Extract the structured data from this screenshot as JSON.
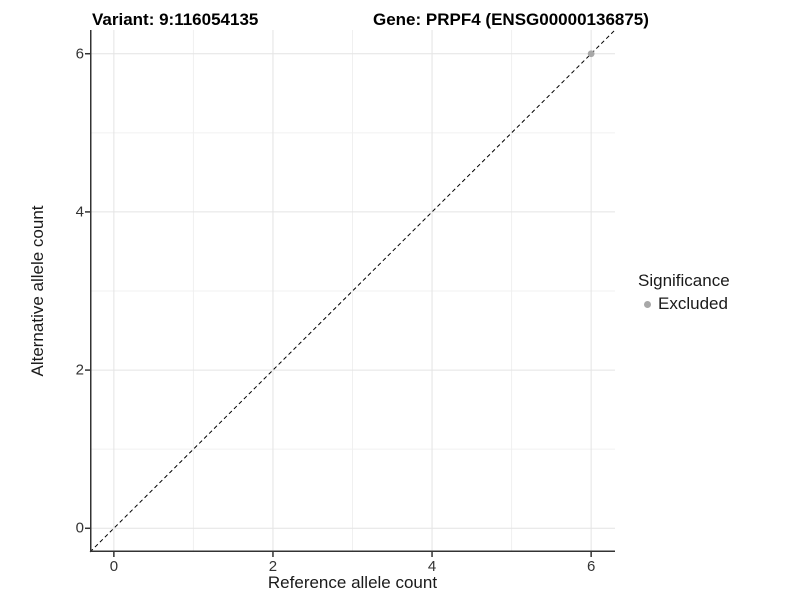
{
  "titles": {
    "variant": "Variant: 9:116054135",
    "gene": "Gene: PRPF4 (ENSG00000136875)"
  },
  "axes": {
    "x_label": "Reference allele count",
    "y_label": "Alternative allele count"
  },
  "legend": {
    "title": "Significance",
    "entries": [
      {
        "label": "Excluded",
        "color": "#a8a8a8"
      }
    ]
  },
  "colors": {
    "background": "#ffffff",
    "axis_line": "#333333",
    "tick_text": "#333333",
    "grid_major": "#e4e4e4",
    "grid_minor": "#f0f0f0",
    "reference_line": "#000000",
    "point": "#a8a8a8"
  },
  "chart_data": {
    "type": "scatter",
    "title": "Variant: 9:116054135    Gene: PRPF4 (ENSG00000136875)",
    "xlabel": "Reference allele count",
    "ylabel": "Alternative allele count",
    "xlim": [
      -0.3,
      6.3
    ],
    "ylim": [
      -0.3,
      6.3
    ],
    "x_ticks": [
      0,
      2,
      4,
      6
    ],
    "y_ticks": [
      0,
      2,
      4,
      6
    ],
    "x_minor_ticks": [
      1,
      3,
      5
    ],
    "y_minor_ticks": [
      1,
      3,
      5
    ],
    "grid": true,
    "legend_position": "right",
    "series": [
      {
        "name": "Excluded",
        "color": "#a8a8a8",
        "points": [
          {
            "x": 6,
            "y": 6
          }
        ]
      }
    ],
    "reference_line": {
      "type": "identity",
      "equation": "y = x",
      "style": "dashed",
      "color": "#000000"
    }
  }
}
